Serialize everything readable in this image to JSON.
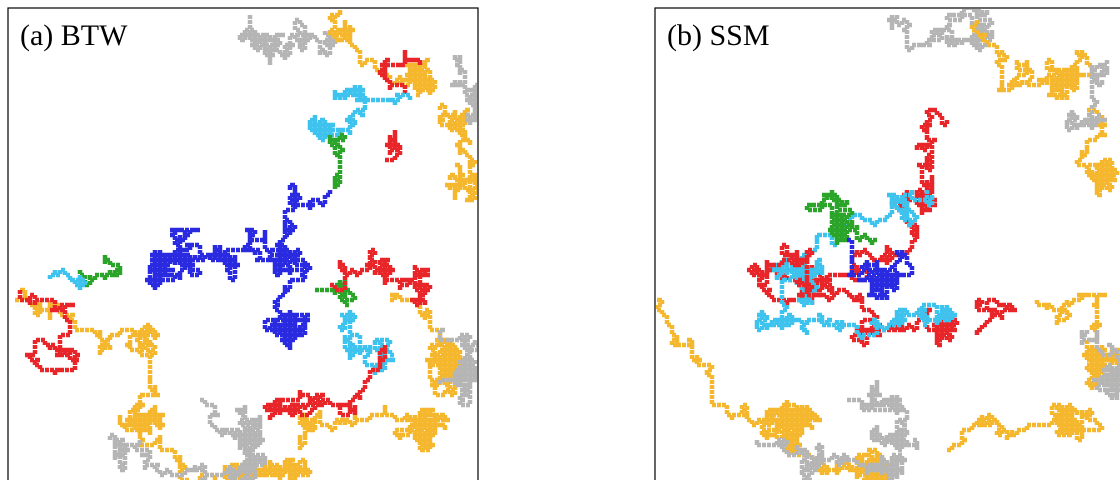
{
  "panels": [
    {
      "label": "(a) BTW"
    },
    {
      "label": "(b) SSM"
    }
  ]
}
